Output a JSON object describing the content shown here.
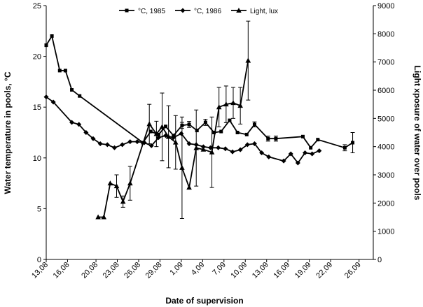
{
  "chart_data": {
    "type": "line",
    "xlabel": "Date of supervision",
    "ylabel_left": "Water temperature in pools, °C",
    "ylabel_right": "Light xposure of water over pools",
    "x_range_days": [
      0,
      46
    ],
    "x_ticks": [
      {
        "label": "13,08",
        "day": 0
      },
      {
        "label": "16,08",
        "day": 3
      },
      {
        "label": "20,08",
        "day": 7
      },
      {
        "label": "23,08",
        "day": 10
      },
      {
        "label": "26,08",
        "day": 13
      },
      {
        "label": "29,08",
        "day": 16
      },
      {
        "label": "1,09",
        "day": 19
      },
      {
        "label": "4,09",
        "day": 22
      },
      {
        "label": "7,09",
        "day": 25
      },
      {
        "label": "10,09",
        "day": 28
      },
      {
        "label": "13,09",
        "day": 31
      },
      {
        "label": "16,09",
        "day": 34
      },
      {
        "label": "19,09",
        "day": 37
      },
      {
        "label": "22,09",
        "day": 40
      },
      {
        "label": "26,09",
        "day": 44
      }
    ],
    "y_left": {
      "min": 0,
      "max": 25,
      "ticks": [
        0,
        5,
        10,
        15,
        20,
        25
      ]
    },
    "y_right": {
      "min": 0,
      "max": 9000,
      "ticks": [
        0,
        1000,
        2000,
        3000,
        4000,
        5000,
        6000,
        7000,
        8000,
        9000
      ]
    },
    "legend_position": "top",
    "series": [
      {
        "name": "°C, 1985",
        "axis": "left",
        "marker": "square",
        "points": [
          {
            "day": 0.0,
            "y": 21.1
          },
          {
            "day": 0.8,
            "y": 22.0
          },
          {
            "day": 1.9,
            "y": 18.6
          },
          {
            "day": 2.7,
            "y": 18.6
          },
          {
            "day": 3.6,
            "y": 16.7
          },
          {
            "day": 4.7,
            "y": 16.1
          },
          {
            "day": 13.6,
            "y": 11.5
          },
          {
            "day": 14.7,
            "y": 12.6
          },
          {
            "day": 15.8,
            "y": 12.3
          },
          {
            "day": 16.8,
            "y": 13.1
          },
          {
            "day": 17.9,
            "y": 12.2
          },
          {
            "day": 19.1,
            "y": 13.2
          },
          {
            "day": 20.1,
            "y": 13.3
          },
          {
            "day": 21.2,
            "y": 12.7
          },
          {
            "day": 22.4,
            "y": 13.5
          },
          {
            "day": 23.6,
            "y": 12.5
          },
          {
            "day": 24.6,
            "y": 12.6
          },
          {
            "day": 25.8,
            "y": 13.7
          },
          {
            "day": 26.9,
            "y": 12.5
          },
          {
            "day": 28.2,
            "y": 12.3
          },
          {
            "day": 29.3,
            "y": 13.3
          },
          {
            "day": 31.2,
            "y": 11.9
          },
          {
            "day": 32.3,
            "y": 11.9
          },
          {
            "day": 36.1,
            "y": 12.1
          },
          {
            "day": 37.2,
            "y": 11.0
          },
          {
            "day": 38.2,
            "y": 11.8
          },
          {
            "day": 42.0,
            "y": 11.0
          },
          {
            "day": 43.1,
            "y": 11.5
          }
        ],
        "error": [
          0,
          0,
          0,
          0,
          0,
          0,
          0,
          0,
          0,
          0,
          0,
          0.3,
          0.3,
          0,
          0.3,
          0,
          0,
          0,
          0,
          0,
          0.25,
          0.25,
          0.25,
          0,
          0,
          0,
          0.3,
          1.0
        ]
      },
      {
        "name": "°C, 1986",
        "axis": "left",
        "marker": "diamond",
        "points": [
          {
            "day": 0.0,
            "y": 16.0
          },
          {
            "day": 1.0,
            "y": 15.5
          },
          {
            "day": 3.6,
            "y": 13.5
          },
          {
            "day": 4.6,
            "y": 13.3
          },
          {
            "day": 5.6,
            "y": 12.5
          },
          {
            "day": 6.6,
            "y": 11.9
          },
          {
            "day": 7.6,
            "y": 11.4
          },
          {
            "day": 8.6,
            "y": 11.3
          },
          {
            "day": 9.6,
            "y": 11.0
          },
          {
            "day": 10.7,
            "y": 11.3
          },
          {
            "day": 11.8,
            "y": 11.6
          },
          {
            "day": 12.8,
            "y": 11.6
          },
          {
            "day": 13.8,
            "y": 11.5
          },
          {
            "day": 14.8,
            "y": 11.2
          },
          {
            "day": 15.8,
            "y": 12.0
          },
          {
            "day": 16.8,
            "y": 12.2
          },
          {
            "day": 17.9,
            "y": 12.0
          },
          {
            "day": 19.0,
            "y": 12.4
          },
          {
            "day": 20.1,
            "y": 11.4
          },
          {
            "day": 21.1,
            "y": 11.3
          },
          {
            "day": 22.1,
            "y": 11.1
          },
          {
            "day": 23.1,
            "y": 11.0
          },
          {
            "day": 24.2,
            "y": 11.0
          },
          {
            "day": 25.2,
            "y": 10.9
          },
          {
            "day": 26.2,
            "y": 10.6
          },
          {
            "day": 27.3,
            "y": 10.8
          },
          {
            "day": 28.3,
            "y": 11.3
          },
          {
            "day": 29.3,
            "y": 11.4
          },
          {
            "day": 30.3,
            "y": 10.5
          },
          {
            "day": 31.3,
            "y": 10.1
          },
          {
            "day": 33.4,
            "y": 9.7
          },
          {
            "day": 34.4,
            "y": 10.4
          },
          {
            "day": 35.4,
            "y": 9.5
          },
          {
            "day": 36.4,
            "y": 10.5
          },
          {
            "day": 37.4,
            "y": 10.4
          },
          {
            "day": 38.4,
            "y": 10.7
          }
        ],
        "error": []
      },
      {
        "name": "Light, lux",
        "axis": "right",
        "marker": "triangle",
        "points": [
          {
            "day": 7.3,
            "y": 1500
          },
          {
            "day": 8.1,
            "y": 1500
          },
          {
            "day": 9.0,
            "y": 2700
          },
          {
            "day": 9.9,
            "y": 2600
          },
          {
            "day": 10.8,
            "y": 2050
          },
          {
            "day": 11.8,
            "y": 2700
          },
          {
            "day": 14.5,
            "y": 4800
          },
          {
            "day": 15.5,
            "y": 4450
          },
          {
            "day": 16.3,
            "y": 4700
          },
          {
            "day": 17.2,
            "y": 4350
          },
          {
            "day": 18.2,
            "y": 4150
          },
          {
            "day": 19.1,
            "y": 3250
          },
          {
            "day": 20.1,
            "y": 2550
          },
          {
            "day": 21.1,
            "y": 3950
          },
          {
            "day": 22.1,
            "y": 3900
          },
          {
            "day": 23.3,
            "y": 3800
          },
          {
            "day": 24.3,
            "y": 5400
          },
          {
            "day": 25.3,
            "y": 5500
          },
          {
            "day": 26.3,
            "y": 5550
          },
          {
            "day": 27.3,
            "y": 5450
          },
          {
            "day": 28.4,
            "y": 7050
          }
        ],
        "error": [
          0,
          0,
          0,
          400,
          200,
          600,
          700,
          450,
          1200,
          1100,
          950,
          1800,
          0,
          1350,
          0,
          1250,
          700,
          650,
          550,
          650,
          1400
        ]
      }
    ]
  }
}
